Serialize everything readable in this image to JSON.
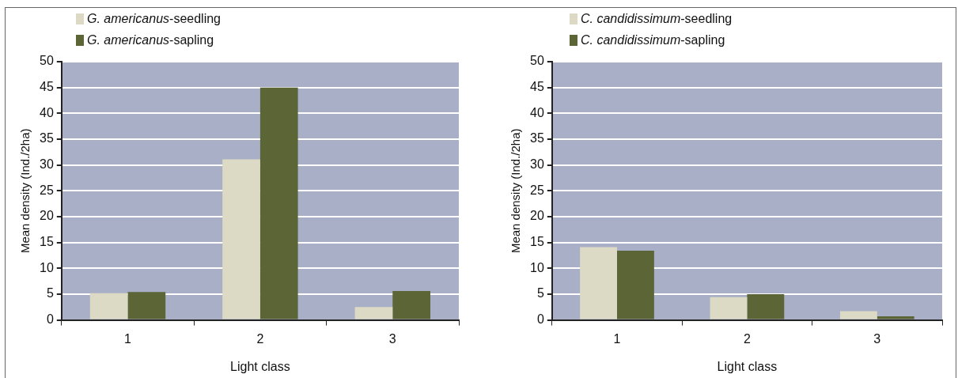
{
  "chart_data": [
    {
      "type": "bar",
      "categories": [
        "1",
        "2",
        "3"
      ],
      "xlabel": "Light class",
      "ylabel": "Mean density (Ind./2ha)",
      "ylim": [
        0,
        50
      ],
      "yticks": [
        0,
        5,
        10,
        15,
        20,
        25,
        30,
        35,
        40,
        45,
        50
      ],
      "grid": "y",
      "legend": "top left",
      "series": [
        {
          "name": "G. americanus-seedling",
          "color": "#dcd9c4",
          "values": [
            5.2,
            31.1,
            2.5
          ]
        },
        {
          "name": "G. americanus-sapling",
          "color": "#5b6535",
          "values": [
            5.4,
            45,
            5.6
          ]
        }
      ]
    },
    {
      "type": "bar",
      "categories": [
        "1",
        "2",
        "3"
      ],
      "xlabel": "Light class",
      "ylabel": "Mean density (Ind./2ha)",
      "ylim": [
        0,
        50
      ],
      "yticks": [
        0,
        5,
        10,
        15,
        20,
        25,
        30,
        35,
        40,
        45,
        50
      ],
      "grid": "y",
      "legend": "top left",
      "series": [
        {
          "name": "C. candidissimum-seedling",
          "color": "#dcd9c4",
          "values": [
            14.1,
            4.4,
            1.7
          ]
        },
        {
          "name": "C. candidissimum-sapling",
          "color": "#5b6535",
          "values": [
            13.4,
            5,
            0.7
          ]
        }
      ]
    }
  ]
}
